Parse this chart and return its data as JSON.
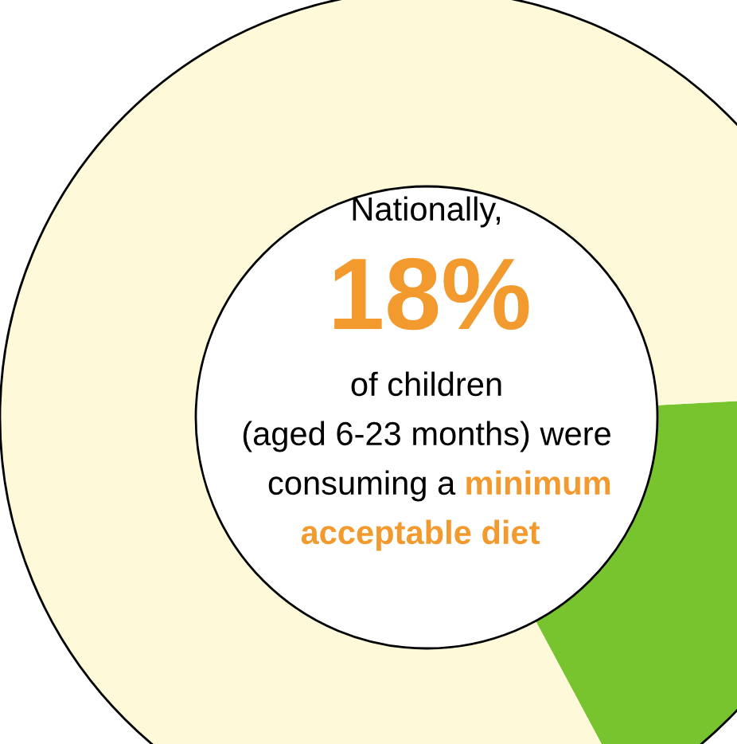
{
  "chart_data": {
    "type": "donut",
    "categories": [
      null,
      null
    ],
    "values": [
      18,
      82
    ],
    "colors": [
      "#77c42e",
      "#fdf9d9"
    ],
    "annotations": [
      "Nationally,",
      "18%",
      "of children",
      "(aged 6-23 months) were",
      "consuming a",
      "minimum",
      "acceptable diet"
    ]
  }
}
